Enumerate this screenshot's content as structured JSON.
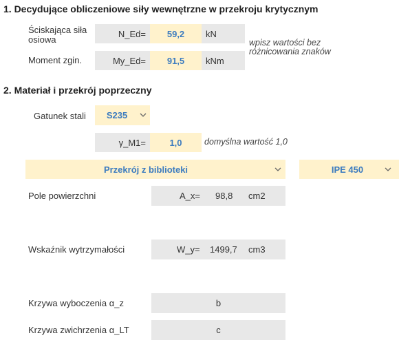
{
  "section1": {
    "title": "1. Decydujące obliczeniowe siły wewnętrzne w przekroju krytycznym",
    "rows": [
      {
        "label": "Ściskająca siła osiowa",
        "symbol": "N_Ed=",
        "value": "59,2",
        "unit": "kN"
      },
      {
        "label": "Moment zgin.",
        "symbol": "My_Ed=",
        "value": "91,5",
        "unit": "kNm"
      }
    ],
    "note": "wpisz wartości bez różnicowania znaków"
  },
  "section2": {
    "title": "2. Materiał i przekrój poprzeczny",
    "steel": {
      "label": "Gatunek stali",
      "value": "S235"
    },
    "gamma": {
      "symbol": "γ_M1=",
      "value": "1,0",
      "note": "domyślna wartość 1,0"
    },
    "section_source": "Przekrój z biblioteki",
    "profile": "IPE 450",
    "properties": [
      {
        "label": "Pole powierzchni",
        "symbol": "A_x=",
        "value": "98,8",
        "unit": "cm2"
      },
      {
        "label": "Wskaźnik wytrzymałości",
        "symbol": "W_y=",
        "value": "1499,7",
        "unit": "cm3"
      }
    ],
    "curves": [
      {
        "label": "Krzywa wyboczenia α_z",
        "value": "b"
      },
      {
        "label": "Krzywa zwichrzenia α_LT",
        "value": "c"
      }
    ]
  }
}
